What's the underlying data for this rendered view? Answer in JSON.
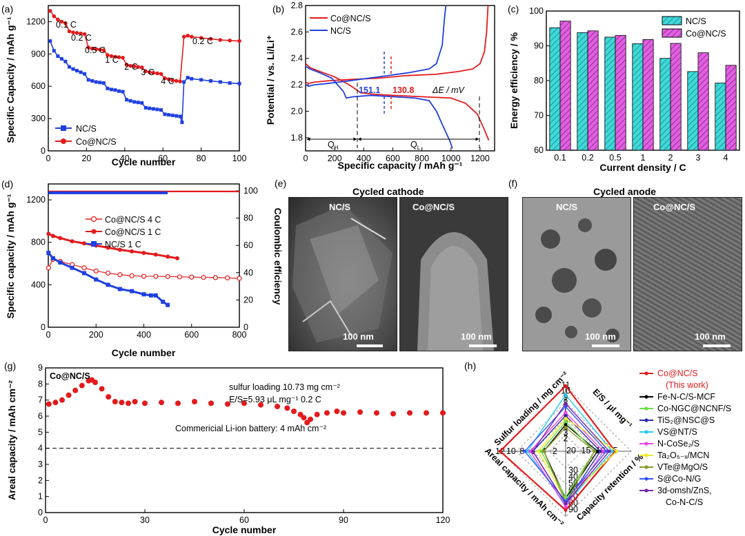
{
  "chart_data": [
    {
      "panel": "(a)",
      "type": "line",
      "xlabel": "Cycle number",
      "ylabel": "Specific Capacity / mAh g⁻¹",
      "xlim": [
        0,
        100
      ],
      "ylim": [
        0,
        1350
      ],
      "xticks": [
        "0",
        "20",
        "40",
        "60",
        "80",
        "100"
      ],
      "yticks": [
        "0",
        "300",
        "600",
        "900",
        "1200"
      ],
      "rate_labels": [
        "0.1 C",
        "0.2 C",
        "0.5 C",
        "1 C",
        "2 C",
        "3 C",
        "4 C",
        "0.2 C"
      ],
      "series": [
        {
          "name": "NC/S",
          "color": "#1f3fe0",
          "x": [
            1,
            3,
            5,
            7,
            9,
            11,
            13,
            15,
            17,
            19,
            21,
            23,
            25,
            27,
            29,
            31,
            33,
            35,
            37,
            39,
            41,
            43,
            45,
            47,
            49,
            51,
            53,
            55,
            57,
            59,
            61,
            63,
            65,
            67,
            69,
            70,
            71,
            73,
            75,
            80,
            85,
            90,
            95,
            100
          ],
          "y": [
            1020,
            930,
            880,
            855,
            830,
            780,
            760,
            745,
            730,
            715,
            660,
            650,
            640,
            635,
            630,
            580,
            570,
            565,
            555,
            550,
            475,
            465,
            455,
            450,
            445,
            400,
            395,
            390,
            385,
            380,
            340,
            335,
            330,
            325,
            320,
            265,
            640,
            680,
            670,
            660,
            650,
            640,
            630,
            625
          ]
        },
        {
          "name": "Co@NC/S",
          "color": "#e31a1c",
          "x": [
            1,
            3,
            5,
            7,
            9,
            11,
            13,
            15,
            17,
            19,
            21,
            23,
            25,
            27,
            29,
            31,
            33,
            35,
            37,
            39,
            41,
            43,
            45,
            47,
            49,
            51,
            53,
            55,
            57,
            59,
            61,
            63,
            65,
            67,
            69,
            71,
            73,
            75,
            80,
            85,
            90,
            95,
            100
          ],
          "y": [
            1300,
            1250,
            1220,
            1200,
            1185,
            1110,
            1100,
            1095,
            1090,
            1085,
            960,
            950,
            945,
            940,
            935,
            890,
            880,
            875,
            870,
            865,
            800,
            790,
            785,
            780,
            775,
            740,
            730,
            725,
            720,
            715,
            675,
            665,
            655,
            650,
            645,
            1060,
            1070,
            1060,
            1050,
            1040,
            1030,
            1025,
            1020
          ]
        }
      ]
    },
    {
      "panel": "(b)",
      "type": "line",
      "xlabel": "Specific capacity / mAh g⁻¹",
      "ylabel": "Potential / vs. Li/Li⁺",
      "xlim": [
        0,
        1300
      ],
      "ylim": [
        1.7,
        2.8
      ],
      "xticks": [
        "0",
        "200",
        "400",
        "600",
        "800",
        "1000",
        "1200"
      ],
      "yticks": [
        "1.8",
        "2.0",
        "2.2",
        "2.4",
        "2.6",
        "2.8"
      ],
      "annotations": {
        "d_blue": "151.1",
        "d_red": "130.8",
        "dE": "ΔE / mV",
        "qh": "Q",
        "qh_sub": "H",
        "ql": "Q",
        "ql_sub": "L"
      },
      "series": [
        {
          "name": "Co@NC/S charge",
          "color": "#e31a1c",
          "x": [
            0,
            20,
            60,
            150,
            300,
            500,
            700,
            900,
            1050,
            1150,
            1200,
            1230,
            1245,
            1255
          ],
          "y": [
            2.22,
            2.21,
            2.22,
            2.23,
            2.24,
            2.25,
            2.27,
            2.28,
            2.3,
            2.32,
            2.36,
            2.45,
            2.6,
            2.8
          ]
        },
        {
          "name": "Co@NC/S discharge",
          "color": "#e31a1c",
          "x": [
            0,
            30,
            100,
            200,
            300,
            380,
            450,
            600,
            800,
            1000,
            1100,
            1180,
            1230,
            1260
          ],
          "y": [
            2.36,
            2.33,
            2.3,
            2.26,
            2.2,
            2.14,
            2.13,
            2.12,
            2.11,
            2.1,
            2.06,
            1.98,
            1.86,
            1.78
          ]
        },
        {
          "name": "NC/S charge",
          "color": "#1f3fe0",
          "x": [
            0,
            20,
            60,
            150,
            300,
            500,
            700,
            850,
            900,
            940,
            955,
            965
          ],
          "y": [
            2.2,
            2.19,
            2.2,
            2.21,
            2.23,
            2.26,
            2.29,
            2.32,
            2.36,
            2.5,
            2.7,
            2.8
          ]
        },
        {
          "name": "NC/S discharge",
          "color": "#1f3fe0",
          "x": [
            0,
            30,
            100,
            180,
            260,
            280,
            330,
            450,
            600,
            750,
            850,
            900,
            940,
            990,
            1010
          ],
          "y": [
            2.34,
            2.32,
            2.29,
            2.25,
            2.15,
            2.1,
            2.11,
            2.12,
            2.11,
            2.1,
            2.08,
            2.0,
            1.9,
            1.78,
            1.72
          ]
        }
      ],
      "legend": [
        "Co@NC/S",
        "NC/S"
      ]
    },
    {
      "panel": "(c)",
      "type": "bar",
      "xlabel": "Current density / C",
      "ylabel": "Energy efficiency / %",
      "ylim": [
        60,
        100
      ],
      "categories": [
        "0.1",
        "0.2",
        "0.5",
        "1",
        "2",
        "3",
        "4"
      ],
      "yticks": [
        "60",
        "70",
        "80",
        "90",
        "100"
      ],
      "series": [
        {
          "name": "NC/S",
          "color": "#40d8d8",
          "values": [
            95.2,
            93.8,
            92.5,
            90.6,
            86.4,
            82.6,
            79.3
          ]
        },
        {
          "name": "Co@NC/S",
          "color": "#e060e0",
          "values": [
            97.1,
            94.3,
            93.0,
            91.8,
            90.7,
            88.0,
            84.4
          ]
        }
      ]
    },
    {
      "panel": "(d)",
      "type": "scatter",
      "xlabel": "Cycle number",
      "ylabel": "Specific capacity / mAh g⁻¹",
      "y2label": "Coulombic efficiency",
      "xlim": [
        0,
        800
      ],
      "ylim": [
        0,
        1350
      ],
      "y2lim": [
        0,
        105
      ],
      "xticks": [
        "0",
        "200",
        "400",
        "600",
        "800"
      ],
      "yticks": [
        "0",
        "400",
        "800",
        "1200"
      ],
      "y2ticks": [
        "0",
        "20",
        "40",
        "60",
        "80",
        "100"
      ],
      "series": [
        {
          "name": "Co@NC/S 4 C",
          "color": "#e31a1c",
          "open": true,
          "x": [
            1,
            20,
            50,
            100,
            150,
            200,
            250,
            300,
            350,
            400,
            450,
            500,
            550,
            600,
            650,
            700,
            750,
            800
          ],
          "y": [
            560,
            640,
            620,
            590,
            560,
            530,
            510,
            495,
            485,
            480,
            480,
            478,
            475,
            472,
            470,
            468,
            465,
            460
          ]
        },
        {
          "name": "Co@NC/S 1 C",
          "color": "#e31a1c",
          "open": false,
          "x": [
            1,
            20,
            50,
            100,
            150,
            200,
            250,
            300,
            350,
            400,
            450,
            500,
            540
          ],
          "y": [
            880,
            860,
            840,
            810,
            790,
            770,
            750,
            730,
            715,
            700,
            685,
            665,
            650
          ]
        },
        {
          "name": "NC/S 1 C",
          "color": "#1f3fe0",
          "open": false,
          "x": [
            1,
            20,
            50,
            100,
            150,
            200,
            250,
            300,
            350,
            400,
            430,
            450,
            480,
            500
          ],
          "y": [
            700,
            650,
            610,
            560,
            510,
            450,
            400,
            360,
            340,
            310,
            300,
            300,
            240,
            210
          ]
        }
      ],
      "ce_series": [
        {
          "name": "Co@NC/S CE",
          "color": "#e31a1c",
          "xmax": 800,
          "ce": 99.5
        },
        {
          "name": "NC/S CE",
          "color": "#1f3fe0",
          "xmax": 500,
          "ce": 98.5
        }
      ]
    },
    {
      "panel": "(g)",
      "type": "scatter",
      "xlabel": "Cycle number",
      "ylabel": "Areal capacity / mAh cm⁻²",
      "xlim": [
        0,
        120
      ],
      "ylim": [
        0,
        9
      ],
      "xticks": [
        "0",
        "30",
        "60",
        "90",
        "120"
      ],
      "yticks": [
        "0",
        "1",
        "2",
        "3",
        "4",
        "5",
        "6",
        "7",
        "8",
        "9"
      ],
      "title_text": "Co@NC/S",
      "note1": "sulfur loading 10.73 mg cm⁻²",
      "note2": "E/S=5.93 μL mg⁻¹  0.2 C",
      "reference": {
        "label": "Commericial Li-ion battery: 4 mAh  cm⁻²",
        "value": 4
      },
      "series": [
        {
          "name": "Co@NC/S",
          "color": "#e31a1c",
          "x": [
            1,
            3,
            5,
            7,
            9,
            11,
            13,
            14,
            15,
            17,
            19,
            21,
            23,
            25,
            27,
            30,
            35,
            40,
            45,
            50,
            55,
            60,
            65,
            70,
            73,
            75,
            77,
            78,
            79,
            80,
            82,
            85,
            88,
            90,
            95,
            100,
            105,
            110,
            115,
            120
          ],
          "y": [
            6.75,
            6.85,
            7.0,
            7.3,
            7.6,
            7.9,
            8.2,
            8.25,
            8.1,
            7.7,
            7.2,
            6.9,
            6.85,
            6.8,
            6.9,
            6.8,
            6.85,
            6.8,
            6.9,
            6.8,
            6.75,
            6.8,
            6.7,
            6.6,
            6.5,
            6.3,
            6.1,
            5.9,
            5.6,
            5.8,
            6.1,
            6.2,
            6.3,
            6.2,
            6.25,
            6.2,
            6.15,
            6.2,
            6.2,
            6.2
          ]
        }
      ]
    },
    {
      "panel": "(h)",
      "type": "radar",
      "axes": [
        "Sulfur loading / mg cm⁻²",
        "E/S / μl mg⁻¹",
        "Capacity retention / %",
        "Areal capacity / mAh cm⁻²"
      ],
      "axis_ticks": {
        "sulfur": [
          "2",
          "3",
          "4",
          "5",
          "6",
          "7",
          "8",
          "9",
          "10",
          "11"
        ],
        "es": [
          "5",
          "10",
          "15",
          "20"
        ],
        "retention": [
          "30",
          "40",
          "50",
          "60",
          "70",
          "80",
          "90"
        ],
        "areal": [
          "2",
          "4",
          "6",
          "8",
          "10",
          "12"
        ]
      },
      "legend": [
        {
          "name": "Co@NC/S",
          "note": "(This work)",
          "color": "#e31a1c"
        },
        {
          "name": "Fe-N-C/S-MCF",
          "color": "#000000"
        },
        {
          "name": "Co-NGC@NCNF/S",
          "color": "#66dd44"
        },
        {
          "name": "TiS₂@NSC@S",
          "color": "#2a2aa8"
        },
        {
          "name": "VS@NT/S",
          "color": "#22ccee"
        },
        {
          "name": "N-CoSe₂/S",
          "color": "#ee44ee"
        },
        {
          "name": "Ta₂O₅₋ₓ/MCN",
          "color": "#eeee22"
        },
        {
          "name": "VTe@MgO/S",
          "color": "#889922"
        },
        {
          "name": "S@Co-N/G",
          "color": "#3355ff"
        },
        {
          "name": "3d-omsh/ZnS,",
          "note": "Co-N-C/S",
          "color": "#7722aa"
        }
      ],
      "values": [
        [
          11,
          5,
          90,
          12
        ],
        [
          4.5,
          11,
          72,
          4
        ],
        [
          5,
          12,
          70,
          4.5
        ],
        [
          6,
          10,
          80,
          6
        ],
        [
          9.5,
          6,
          82,
          7
        ],
        [
          6.5,
          9,
          85,
          6.5
        ],
        [
          5.5,
          4.5,
          75,
          5
        ],
        [
          4,
          12,
          78,
          4
        ],
        [
          7.5,
          8,
          76,
          7.5
        ],
        [
          8,
          7,
          80,
          6
        ]
      ]
    }
  ],
  "panels": {
    "a": "(a)",
    "b": "(b)",
    "c": "(c)",
    "d": "(d)",
    "e": "(e)",
    "f": "(f)",
    "g": "(g)",
    "h": "(h)"
  },
  "sem": {
    "e_title": "Cycled  cathode",
    "f_title": "Cycled  anode",
    "left_label": "NC/S",
    "right_label": "Co@NC/S",
    "scale": "100 nm"
  }
}
